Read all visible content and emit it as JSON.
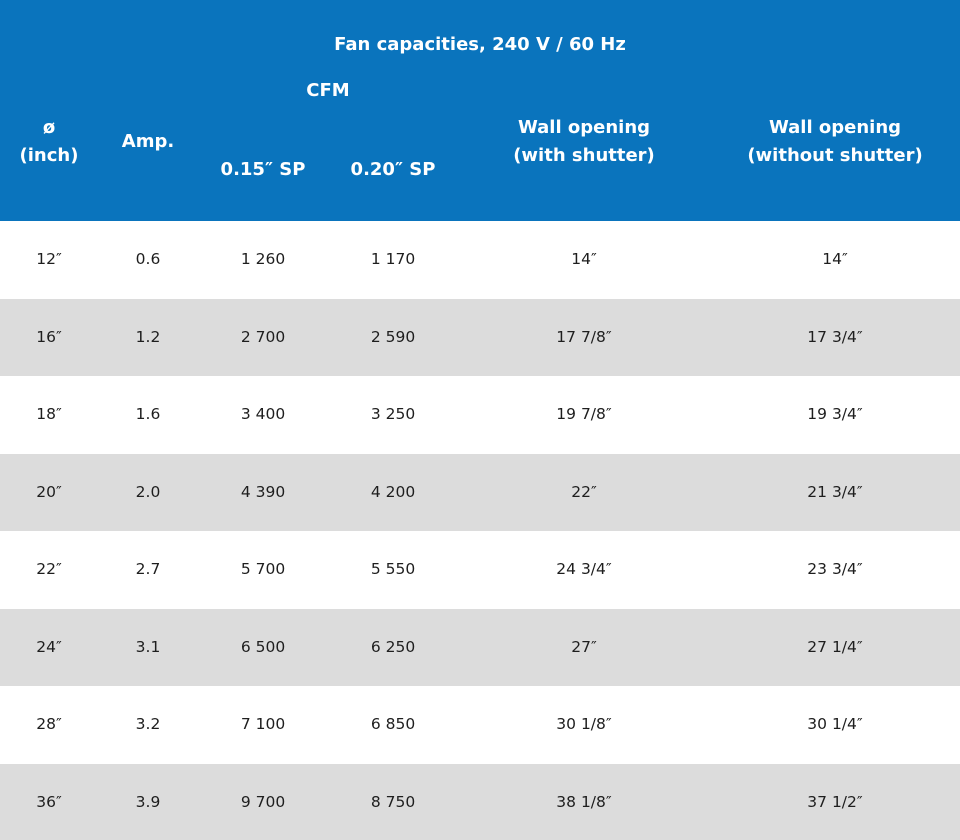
{
  "table": {
    "title": "Fan capacities, 240 V / 60 Hz",
    "header": {
      "diameter": [
        "ø",
        "(inch)"
      ],
      "amp": "Amp.",
      "cfm_group": "CFM",
      "cfm_015": "0.15″ SP",
      "cfm_020": "0.20″ SP",
      "wall_with": [
        "Wall opening",
        "(with shutter)"
      ],
      "wall_without": [
        "Wall opening",
        "(without shutter)"
      ]
    },
    "rows": [
      [
        "12″",
        "0.6",
        "1 260",
        "1 170",
        "14″",
        "14″"
      ],
      [
        "16″",
        "1.2",
        "2 700",
        "2 590",
        "17 7/8″",
        "17 3/4″"
      ],
      [
        "18″",
        "1.6",
        "3 400",
        "3 250",
        "19 7/8″",
        "19 3/4″"
      ],
      [
        "20″",
        "2.0",
        "4 390",
        "4 200",
        "22″",
        "21 3/4″"
      ],
      [
        "22″",
        "2.7",
        "5 700",
        "5 550",
        "24 3/4″",
        "23 3/4″"
      ],
      [
        "24″",
        "3.1",
        "6 500",
        "6 250",
        "27″",
        "27 1/4″"
      ],
      [
        "28″",
        "3.2",
        "7 100",
        "6 850",
        "30 1/8″",
        "30 1/4″"
      ],
      [
        "36″",
        "3.9",
        "9 700",
        "8 750",
        "38 1/8″",
        "37 1/2″"
      ]
    ],
    "colors": {
      "header_bg": "#0a74bd",
      "header_text": "#ffffff",
      "row_shade": "#dcdcdc",
      "row_plain": "#ffffff",
      "body_text": "#1e1e1e"
    }
  }
}
